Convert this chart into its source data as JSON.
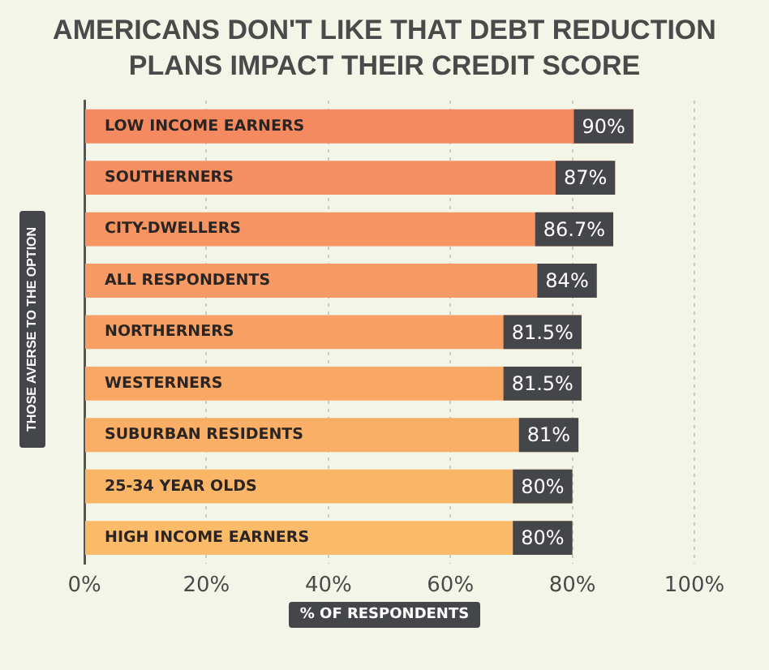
{
  "chart_data": {
    "type": "bar",
    "orientation": "horizontal",
    "title": "AMERICANS DON'T LIKE THAT DEBT REDUCTION PLANS IMPACT THEIR CREDIT SCORE",
    "xlabel": "% OF RESPONDENTS",
    "ylabel": "THOSE AVERSE TO THE OPTION",
    "categories": [
      "LOW INCOME EARNERS",
      "SOUTHERNERS",
      "CITY-DWELLERS",
      "ALL RESPONDENTS",
      "NORTHERNERS",
      "WESTERNERS",
      "SUBURBAN RESIDENTS",
      "25-34 YEAR OLDS",
      "HIGH INCOME EARNERS"
    ],
    "values": [
      90,
      87,
      86.7,
      84,
      81.5,
      81.5,
      81,
      80,
      80
    ],
    "value_labels": [
      "90%",
      "87%",
      "86.7%",
      "84%",
      "81.5%",
      "81.5%",
      "81%",
      "80%",
      "80%"
    ],
    "colors": [
      "#f58a60",
      "#f68f61",
      "#f69462",
      "#f79a63",
      "#f8a064",
      "#f9a765",
      "#faae66",
      "#fbb567",
      "#fcbb68"
    ],
    "xlim": [
      0,
      100
    ],
    "xticks": [
      {
        "value": 0,
        "label": "0%"
      },
      {
        "value": 20,
        "label": "20%"
      },
      {
        "value": 40,
        "label": "40%"
      },
      {
        "value": 60,
        "label": "60%"
      },
      {
        "value": 80,
        "label": "80%"
      },
      {
        "value": 100,
        "label": "100%"
      }
    ],
    "grid": "x",
    "legend": false
  }
}
